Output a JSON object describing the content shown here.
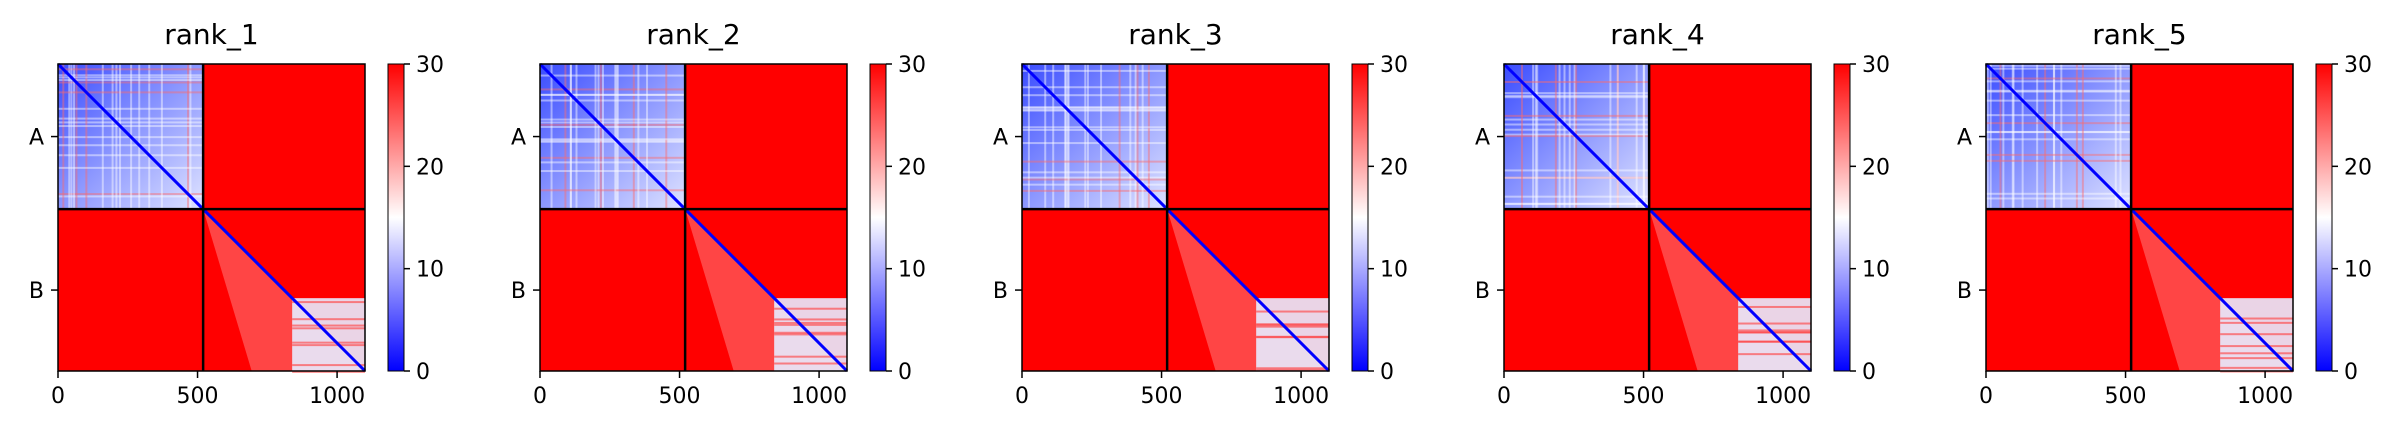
{
  "chart_data": [
    {
      "type": "heatmap",
      "title": "rank_1",
      "x_ticks": [
        0,
        500,
        1000
      ],
      "x_range": [
        0,
        1100
      ],
      "y_ticks": [
        "A",
        "B"
      ],
      "chains": [
        {
          "name": "A",
          "start": 0,
          "end": 520
        },
        {
          "name": "B",
          "start": 520,
          "end": 1100
        }
      ],
      "colorbar": {
        "min": 0,
        "max": 30,
        "ticks": [
          0,
          10,
          20,
          30
        ],
        "colormap": [
          "#0000ff",
          "#ffffff",
          "#ff0000"
        ]
      }
    },
    {
      "type": "heatmap",
      "title": "rank_2",
      "x_ticks": [
        0,
        500,
        1000
      ],
      "x_range": [
        0,
        1100
      ],
      "y_ticks": [
        "A",
        "B"
      ],
      "chains": [
        {
          "name": "A",
          "start": 0,
          "end": 520
        },
        {
          "name": "B",
          "start": 520,
          "end": 1100
        }
      ],
      "colorbar": {
        "min": 0,
        "max": 30,
        "ticks": [
          0,
          10,
          20,
          30
        ],
        "colormap": [
          "#0000ff",
          "#ffffff",
          "#ff0000"
        ]
      }
    },
    {
      "type": "heatmap",
      "title": "rank_3",
      "x_ticks": [
        0,
        500,
        1000
      ],
      "x_range": [
        0,
        1100
      ],
      "y_ticks": [
        "A",
        "B"
      ],
      "chains": [
        {
          "name": "A",
          "start": 0,
          "end": 520
        },
        {
          "name": "B",
          "start": 520,
          "end": 1100
        }
      ],
      "colorbar": {
        "min": 0,
        "max": 30,
        "ticks": [
          0,
          10,
          20,
          30
        ],
        "colormap": [
          "#0000ff",
          "#ffffff",
          "#ff0000"
        ]
      }
    },
    {
      "type": "heatmap",
      "title": "rank_4",
      "x_ticks": [
        0,
        500,
        1000
      ],
      "x_range": [
        0,
        1100
      ],
      "y_ticks": [
        "A",
        "B"
      ],
      "chains": [
        {
          "name": "A",
          "start": 0,
          "end": 520
        },
        {
          "name": "B",
          "start": 520,
          "end": 1100
        }
      ],
      "colorbar": {
        "min": 0,
        "max": 30,
        "ticks": [
          0,
          10,
          20,
          30
        ],
        "colormap": [
          "#0000ff",
          "#ffffff",
          "#ff0000"
        ]
      }
    },
    {
      "type": "heatmap",
      "title": "rank_5",
      "x_ticks": [
        0,
        500,
        1000
      ],
      "x_range": [
        0,
        1100
      ],
      "y_ticks": [
        "A",
        "B"
      ],
      "chains": [
        {
          "name": "A",
          "start": 0,
          "end": 520
        },
        {
          "name": "B",
          "start": 520,
          "end": 1100
        }
      ],
      "colorbar": {
        "min": 0,
        "max": 30,
        "ticks": [
          0,
          10,
          20,
          30
        ],
        "colormap": [
          "#0000ff",
          "#ffffff",
          "#ff0000"
        ]
      }
    }
  ]
}
